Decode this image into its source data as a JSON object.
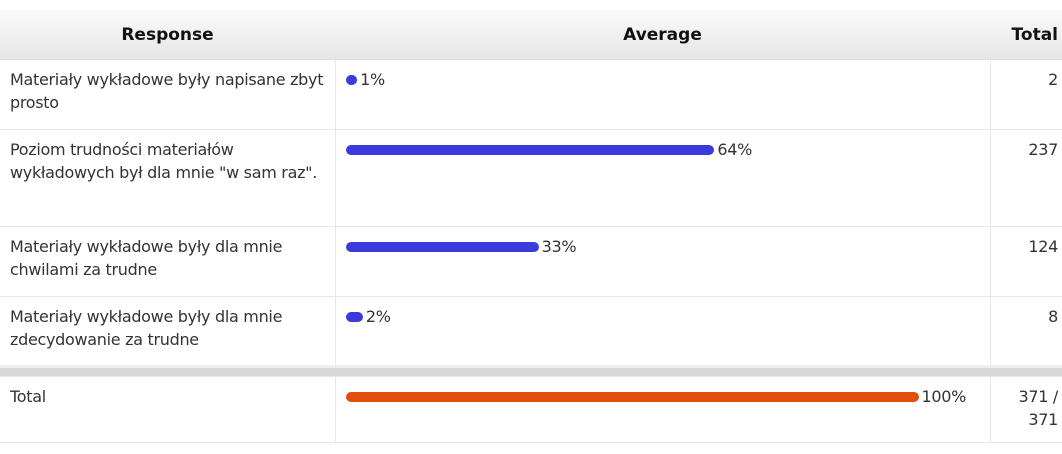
{
  "table": {
    "header": [
      "Response",
      "Average",
      "Total"
    ],
    "rows": [
      {
        "response": "Materiały wykładowe były napisane zbyt prosto",
        "percent": 1,
        "percent_label": "1%",
        "total": 2
      },
      {
        "response": "Poziom trudności materiałów wykładowych był dla mnie \"w sam raz\".",
        "percent": 64,
        "percent_label": "64%",
        "total": 237
      },
      {
        "response": "Materiały wykładowe były dla mnie chwilami za trudne",
        "percent": 33,
        "percent_label": "33%",
        "total": 124
      },
      {
        "response": "Materiały wykładowe były dla mnie zdecydowanie za trudne",
        "percent": 2,
        "percent_label": "2%",
        "total": 8
      }
    ],
    "footer": {
      "response": "Total",
      "percent": 100,
      "percent_label": "100%",
      "total": "371 / 371"
    },
    "bar_color": "#3b3bdc",
    "total_bar_color": "#e24e0c"
  }
}
